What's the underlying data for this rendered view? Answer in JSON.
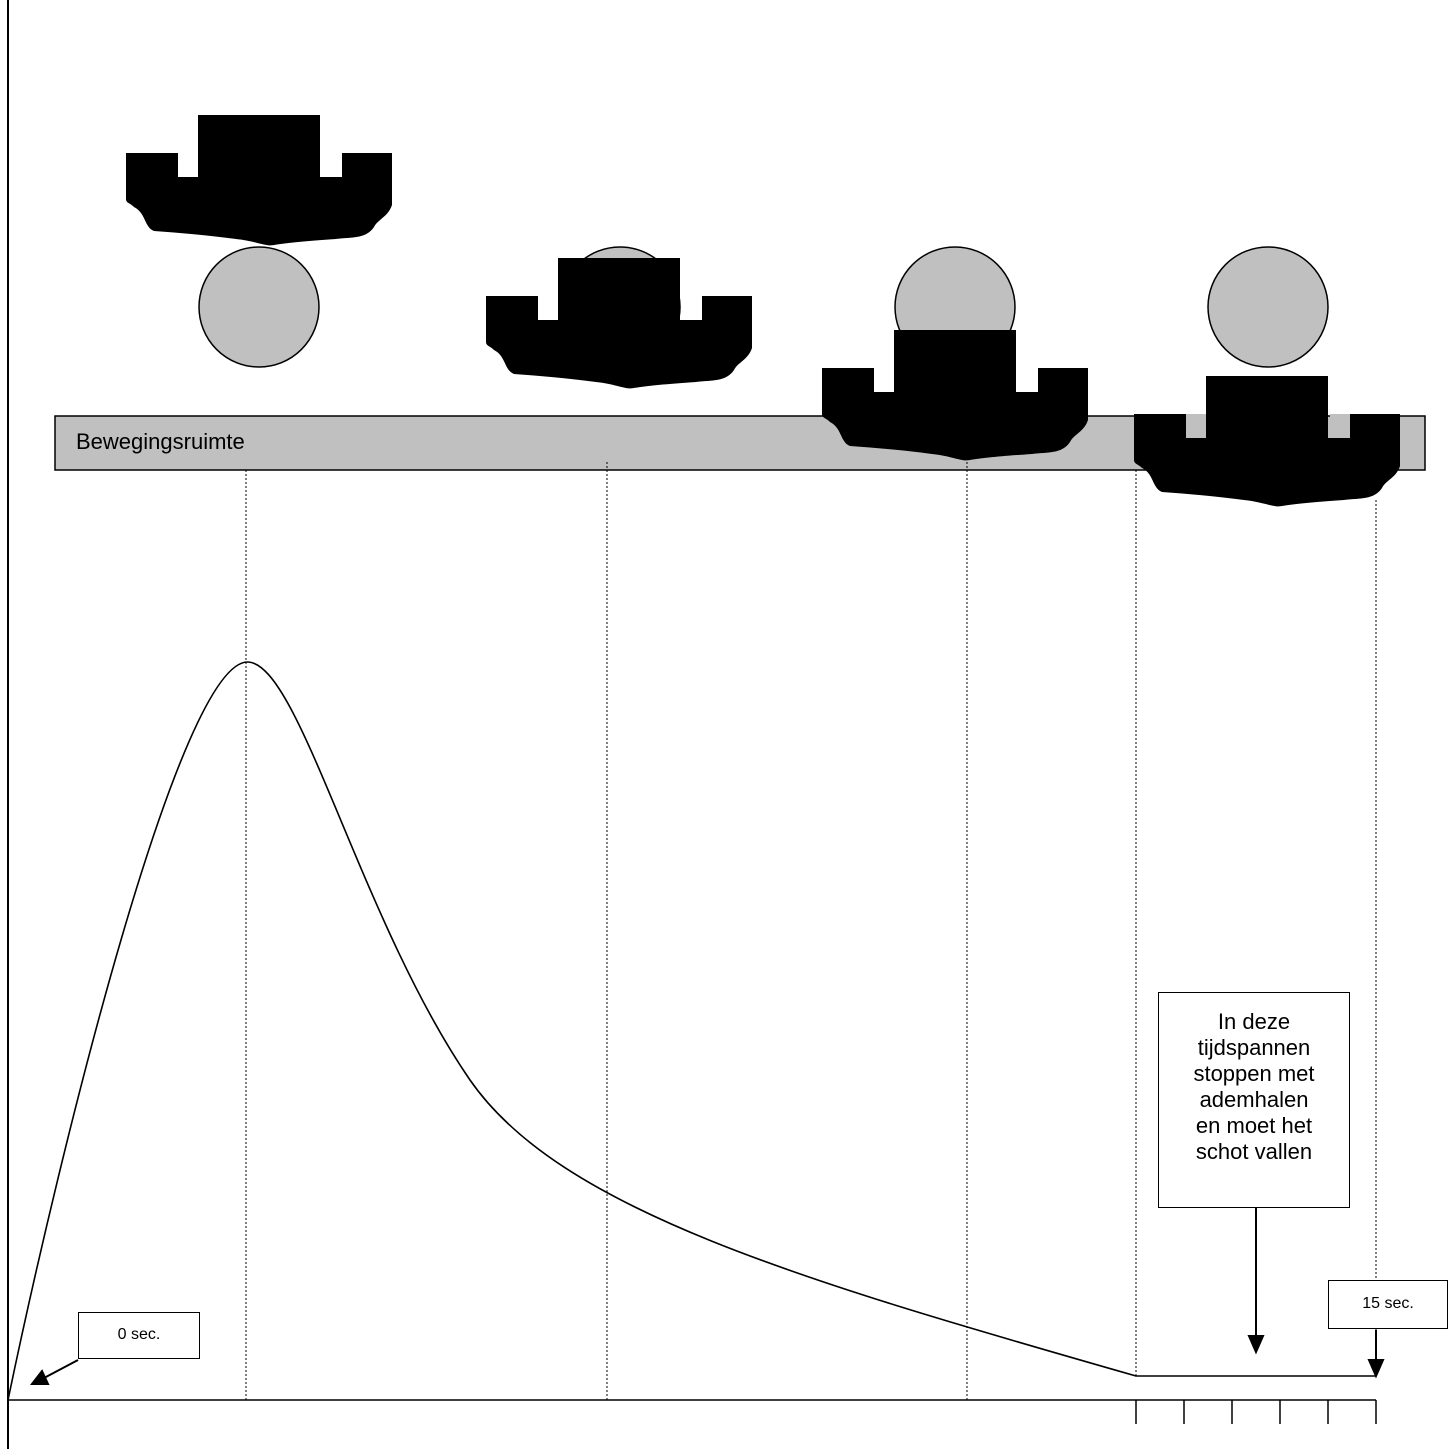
{
  "band": {
    "label": "Bewegingsruimte"
  },
  "callout": {
    "lines": [
      "In deze",
      "tijdspannen",
      "stoppen met",
      "ademhalen",
      "en moet het",
      "schot vallen"
    ]
  },
  "markers": {
    "start": "0 sec.",
    "end": "15 sec."
  },
  "icons": [
    "rifle-front-sight-icon",
    "target-bull-icon",
    "arrow-down-icon",
    "arrow-left-down-icon"
  ],
  "colors": {
    "band_fill": "#c0c0c0",
    "target_fill": "#c0c0c0",
    "sight_fill": "#000000",
    "line": "#000000"
  }
}
